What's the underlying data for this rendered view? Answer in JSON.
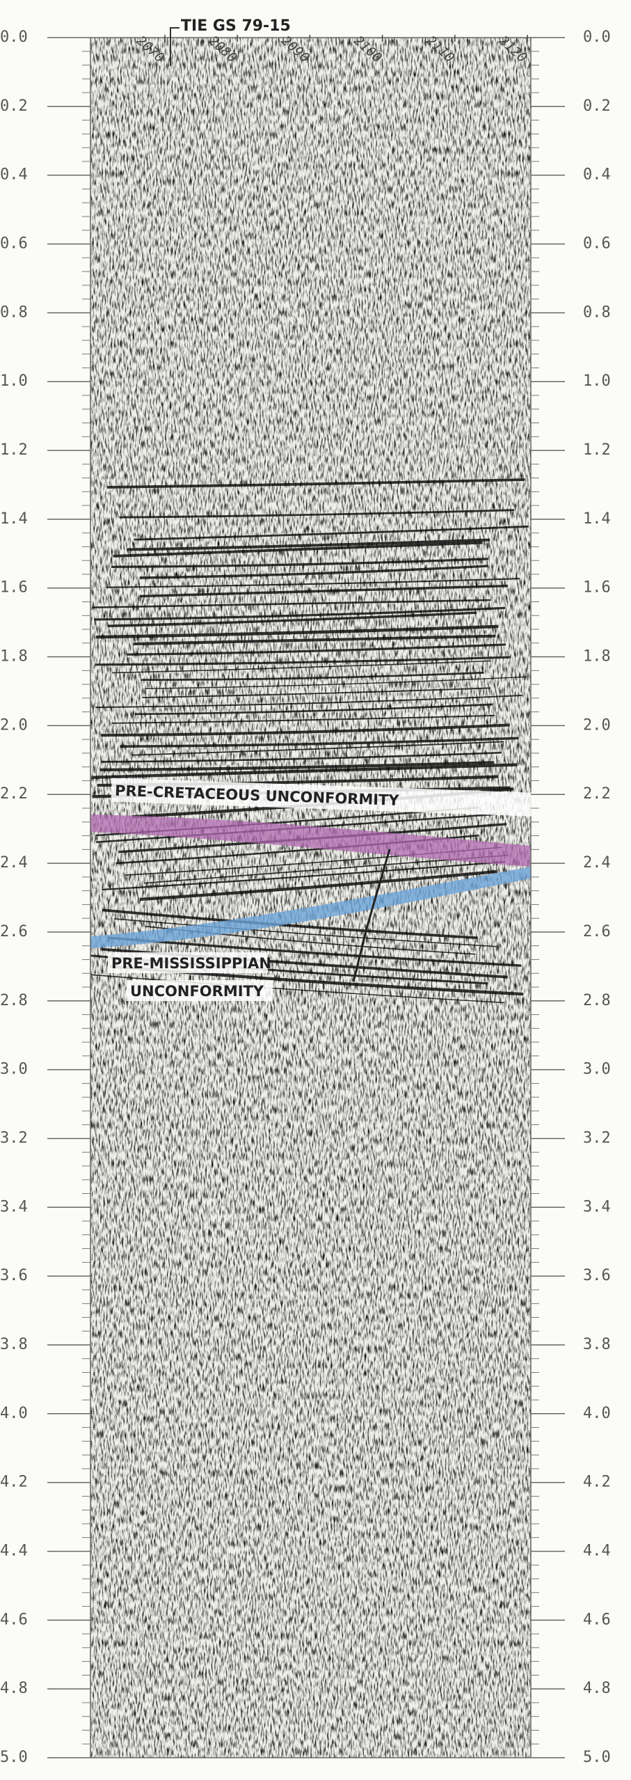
{
  "header": {
    "tie_label": "TIE GS 79-15"
  },
  "shotpoints": [
    {
      "value": 2070,
      "label": "2070"
    },
    {
      "value": 2080,
      "label": "2080"
    },
    {
      "value": 2090,
      "label": "2090"
    },
    {
      "value": 2100,
      "label": "2100"
    },
    {
      "value": 2110,
      "label": "2110"
    },
    {
      "value": 2120,
      "label": "2120"
    }
  ],
  "time_axis": {
    "range": [
      0,
      5
    ],
    "ticks": [
      {
        "value": 0,
        "label": "0.0"
      },
      {
        "value": 0.2,
        "label": "0.2"
      },
      {
        "value": 0.4,
        "label": "0.4"
      },
      {
        "value": 0.6,
        "label": "0.6"
      },
      {
        "value": 0.8,
        "label": "0.8"
      },
      {
        "value": 1,
        "label": "1.0"
      },
      {
        "value": 1.2,
        "label": "1.2"
      },
      {
        "value": 1.4,
        "label": "1.4"
      },
      {
        "value": 1.6,
        "label": "1.6"
      },
      {
        "value": 1.8,
        "label": "1.8"
      },
      {
        "value": 2,
        "label": "2.0"
      },
      {
        "value": 2.2,
        "label": "2.2"
      },
      {
        "value": 2.4,
        "label": "2.4"
      },
      {
        "value": 2.6,
        "label": "2.6"
      },
      {
        "value": 2.8,
        "label": "2.8"
      },
      {
        "value": 3,
        "label": "3.0"
      },
      {
        "value": 3.2,
        "label": "3.2"
      },
      {
        "value": 3.4,
        "label": "3.4"
      },
      {
        "value": 3.6,
        "label": "3.6"
      },
      {
        "value": 3.8,
        "label": "3.8"
      },
      {
        "value": 4,
        "label": "4.0"
      },
      {
        "value": 4.2,
        "label": "4.2"
      },
      {
        "value": 4.4,
        "label": "4.4"
      },
      {
        "value": 4.6,
        "label": "4.6"
      },
      {
        "value": 4.8,
        "label": "4.8"
      },
      {
        "value": 5,
        "label": "5.0"
      }
    ]
  },
  "annotations": {
    "upper": "PRE-CRETACEOUS UNCONFORMITY",
    "lower_line1": "PRE-MISSISSIPPIAN",
    "lower_line2": "UNCONFORMITY"
  }
}
